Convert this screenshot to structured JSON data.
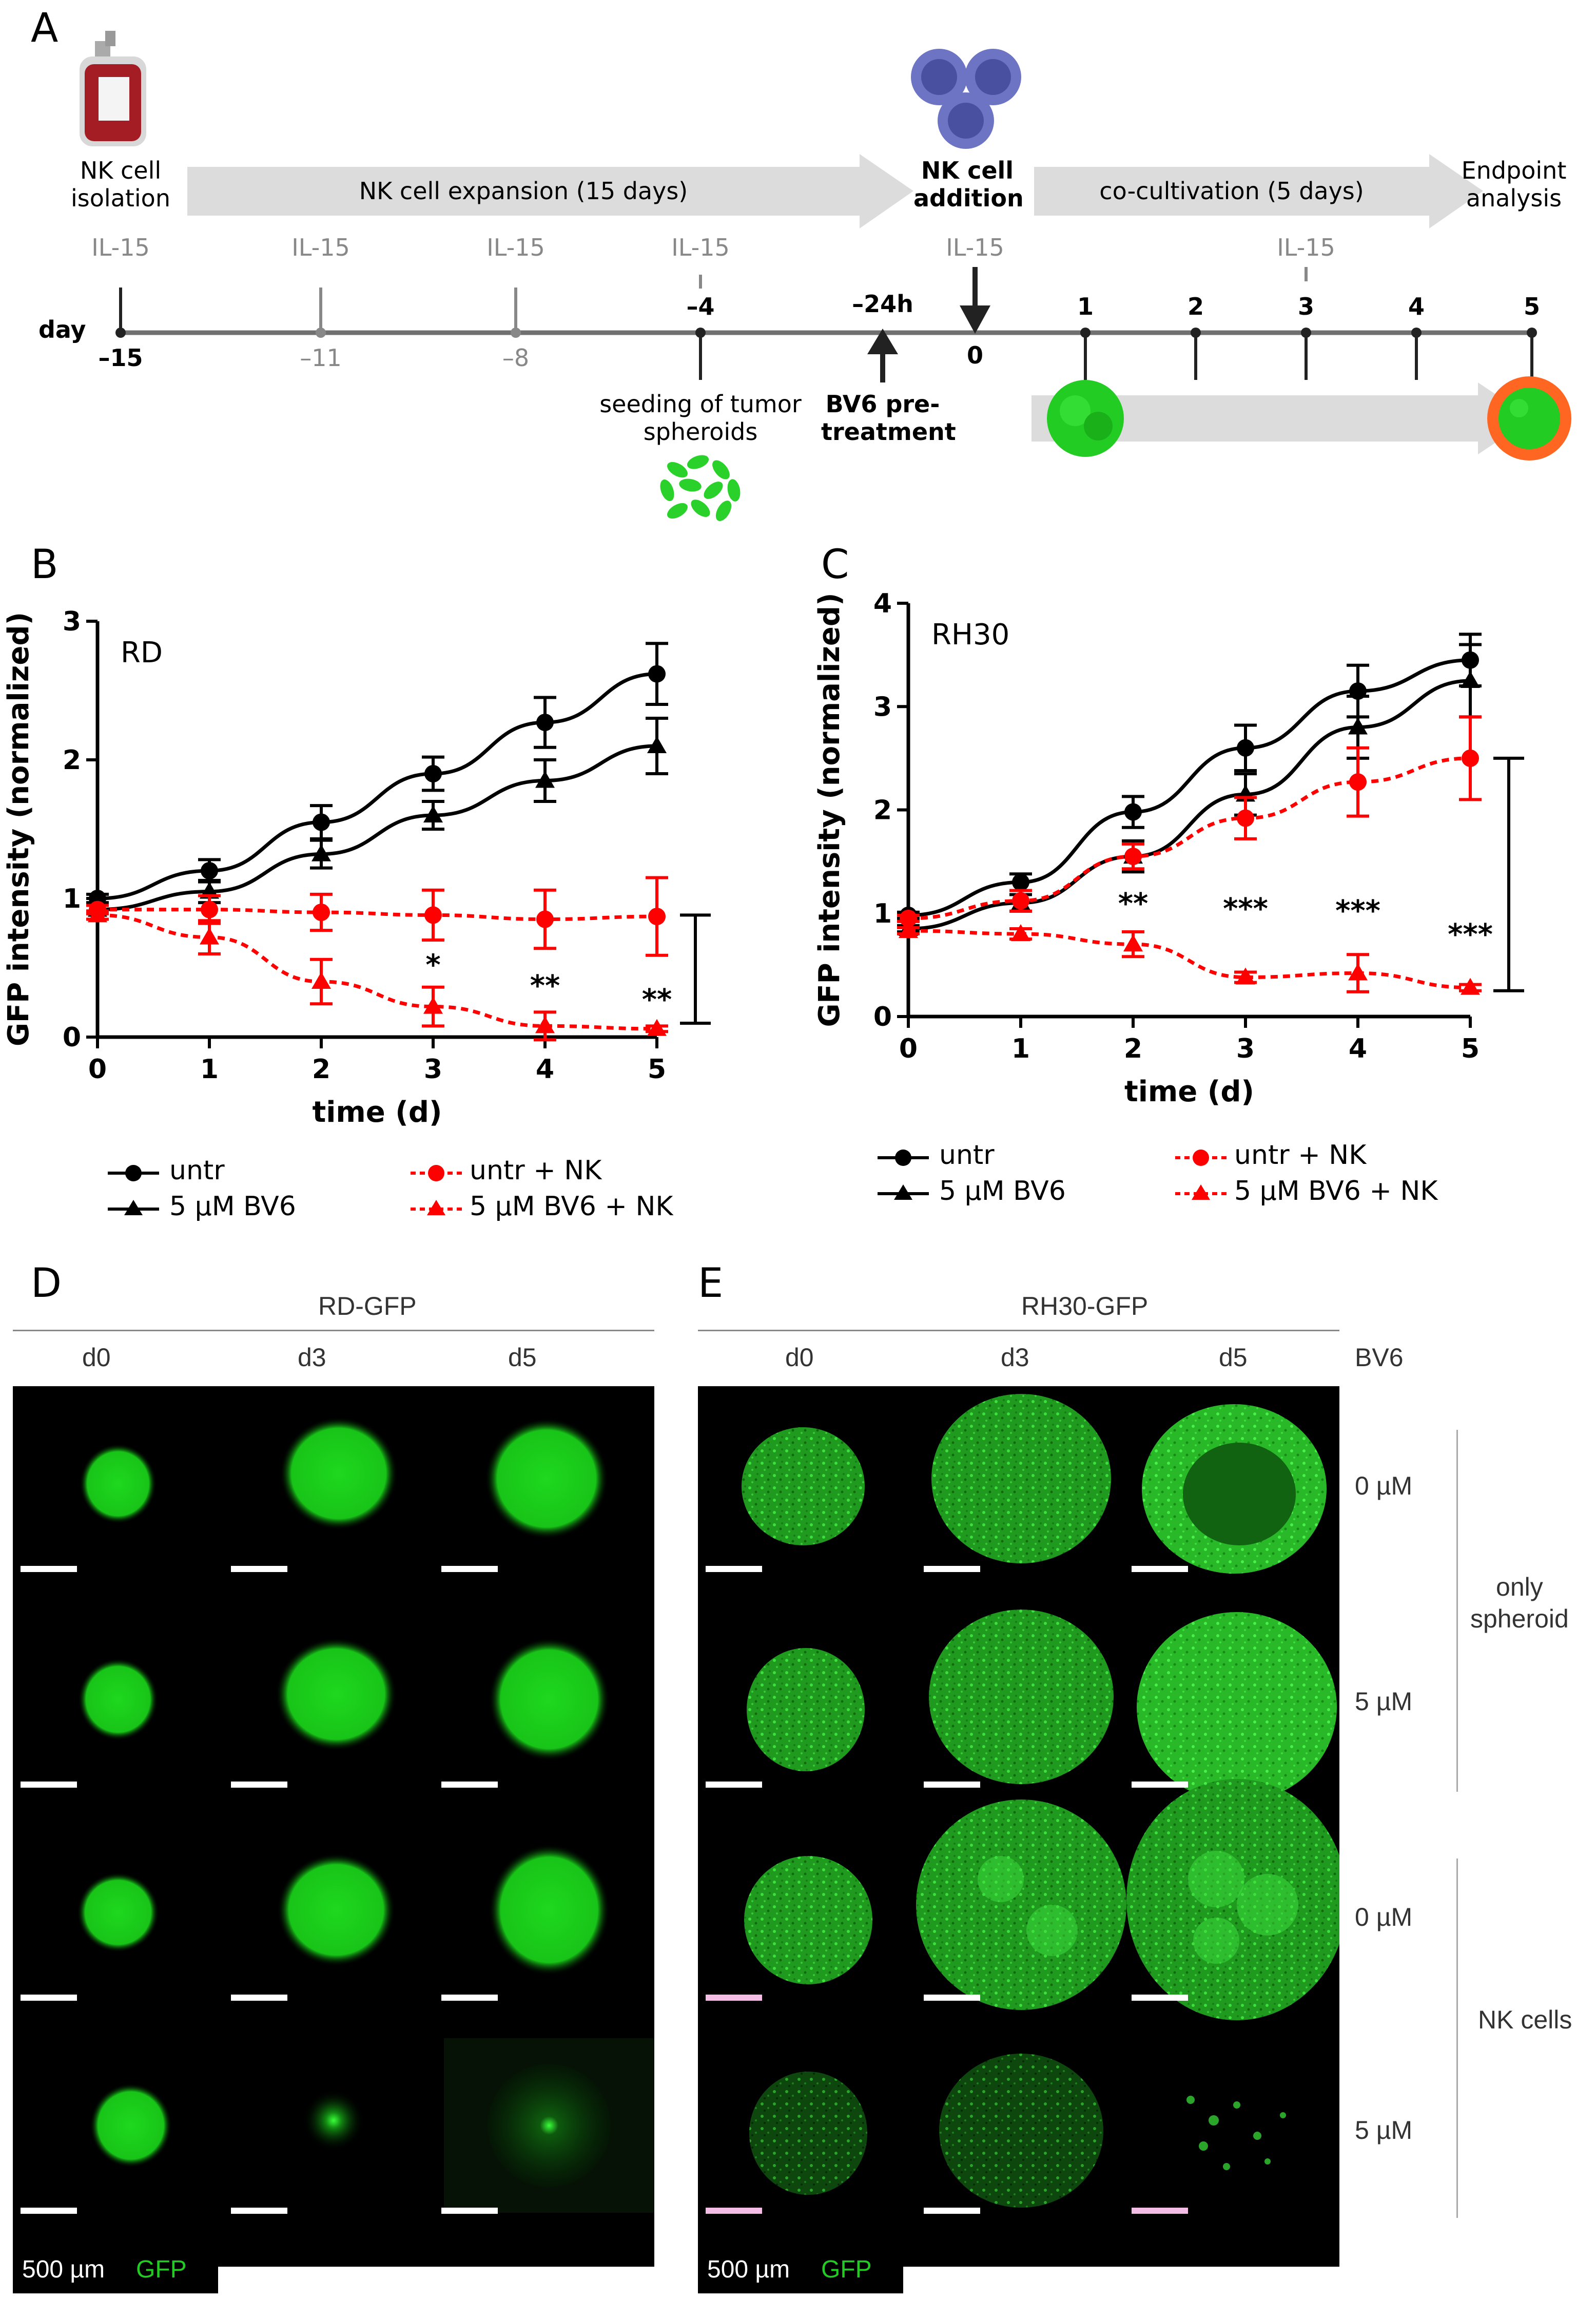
{
  "panel_labels": {
    "A": "A",
    "B": "B",
    "C": "C",
    "D": "D",
    "E": "E"
  },
  "timeline": {
    "step_isolation": "NK cell isolation",
    "step_isolation_line1": "NK cell",
    "step_isolation_line2": "isolation",
    "expansion": "NK cell expansion (15 days)",
    "addition_line1": "NK cell",
    "addition_line2": "addition",
    "cocultivation": "co-cultivation (5 days)",
    "endpoint_line1": "Endpoint",
    "endpoint_line2": "analysis",
    "day_label": "day",
    "il15": "IL-15",
    "ticks": [
      "–15",
      "–11",
      "–8",
      "–4",
      "–24h",
      "0",
      "1",
      "2",
      "3",
      "4",
      "5"
    ],
    "seeding_line1": "seeding of tumor",
    "seeding_line2": "spheroids",
    "bv6_line1": "BV6 pre-",
    "bv6_line2": "treatment"
  },
  "legend": {
    "untr": "untr",
    "bv6": "5 µM BV6",
    "untr_nk": "untr + NK",
    "bv6_nk": "5 µM BV6 + NK"
  },
  "chart_data": [
    {
      "type": "line",
      "panel": "B",
      "title": "RD",
      "xlabel": "time (d)",
      "ylabel": "GFP intensity (normalized)",
      "x": [
        0,
        1,
        2,
        3,
        4,
        5
      ],
      "xlim": [
        0,
        5
      ],
      "ylim": [
        0,
        3
      ],
      "yticks": [
        0,
        1,
        2,
        3
      ],
      "series": [
        {
          "name": "untr",
          "color": "#000000",
          "marker": "circle",
          "dashed": false,
          "values": [
            1.0,
            1.2,
            1.55,
            1.9,
            2.27,
            2.62
          ],
          "errors": [
            0.03,
            0.08,
            0.12,
            0.12,
            0.18,
            0.22
          ]
        },
        {
          "name": "5 µM BV6",
          "color": "#000000",
          "marker": "triangle",
          "dashed": false,
          "values": [
            0.92,
            1.05,
            1.32,
            1.6,
            1.85,
            2.1
          ],
          "errors": [
            0.03,
            0.08,
            0.1,
            0.1,
            0.15,
            0.2
          ]
        },
        {
          "name": "untr + NK",
          "color": "#ff0000",
          "marker": "circle",
          "dashed": true,
          "values": [
            0.92,
            0.92,
            0.9,
            0.88,
            0.85,
            0.87
          ],
          "errors": [
            0.03,
            0.1,
            0.13,
            0.18,
            0.21,
            0.28
          ]
        },
        {
          "name": "5 µM BV6 + NK",
          "color": "#ff0000",
          "marker": "triangle",
          "dashed": true,
          "values": [
            0.88,
            0.72,
            0.4,
            0.22,
            0.08,
            0.06
          ],
          "errors": [
            0.03,
            0.12,
            0.16,
            0.14,
            0.1,
            0.02
          ]
        }
      ],
      "annotations": [
        {
          "x": 3,
          "y": 0.45,
          "text": "*"
        },
        {
          "x": 4,
          "y": 0.3,
          "text": "**"
        },
        {
          "x": 5,
          "y": 0.2,
          "text": "**"
        }
      ],
      "bracket": {
        "y_top": 0.88,
        "y_bottom": 0.1
      }
    },
    {
      "type": "line",
      "panel": "C",
      "title": "RH30",
      "xlabel": "time (d)",
      "ylabel": "GFP intensity (normalized)",
      "x": [
        0,
        1,
        2,
        3,
        4,
        5
      ],
      "xlim": [
        0,
        5
      ],
      "ylim": [
        0,
        4
      ],
      "yticks": [
        0,
        1,
        2,
        3,
        4
      ],
      "series": [
        {
          "name": "untr",
          "color": "#000000",
          "marker": "circle",
          "dashed": false,
          "values": [
            0.98,
            1.3,
            1.98,
            2.6,
            3.15,
            3.45
          ],
          "errors": [
            0.03,
            0.08,
            0.15,
            0.22,
            0.25,
            0.25
          ]
        },
        {
          "name": "5 µM BV6",
          "color": "#000000",
          "marker": "triangle",
          "dashed": false,
          "values": [
            0.85,
            1.1,
            1.55,
            2.15,
            2.8,
            3.25
          ],
          "errors": [
            0.03,
            0.08,
            0.15,
            0.2,
            0.3,
            0.35
          ]
        },
        {
          "name": "untr + NK",
          "color": "#ff0000",
          "marker": "circle",
          "dashed": true,
          "values": [
            0.95,
            1.12,
            1.55,
            1.92,
            2.27,
            2.5
          ],
          "errors": [
            0.03,
            0.1,
            0.12,
            0.2,
            0.33,
            0.4
          ]
        },
        {
          "name": "5 µM BV6 + NK",
          "color": "#ff0000",
          "marker": "triangle",
          "dashed": true,
          "values": [
            0.83,
            0.8,
            0.7,
            0.38,
            0.42,
            0.28
          ],
          "errors": [
            0.03,
            0.05,
            0.12,
            0.05,
            0.18,
            0.03
          ]
        }
      ],
      "annotations": [
        {
          "x": 2,
          "y": 1.0,
          "text": "**"
        },
        {
          "x": 3,
          "y": 0.95,
          "text": "***"
        },
        {
          "x": 4,
          "y": 0.93,
          "text": "***"
        },
        {
          "x": 5,
          "y": 0.7,
          "text": "***"
        }
      ],
      "bracket": {
        "y_top": 2.5,
        "y_bottom": 0.25
      }
    }
  ],
  "micrographs": {
    "D": {
      "title": "RD-GFP",
      "columns": [
        "d0",
        "d3",
        "d5"
      ],
      "scalebar_text": "500 µm",
      "channel_text": "GFP"
    },
    "E": {
      "title": "RH30-GFP",
      "columns": [
        "d0",
        "d3",
        "d5"
      ],
      "bv6_header": "BV6",
      "rows": [
        "0 µM",
        "5 µM",
        "0 µM",
        "5 µM"
      ],
      "group1": "only spheroid",
      "group1_line1": "only",
      "group1_line2": "spheroid",
      "group2": "NK cells",
      "scalebar_text": "500 µm",
      "channel_text": "GFP"
    }
  },
  "colors": {
    "gfp": "#22cc22",
    "red": "#ff0000",
    "arrow_gray": "#dcdcdc",
    "axis_gray": "#707070"
  }
}
